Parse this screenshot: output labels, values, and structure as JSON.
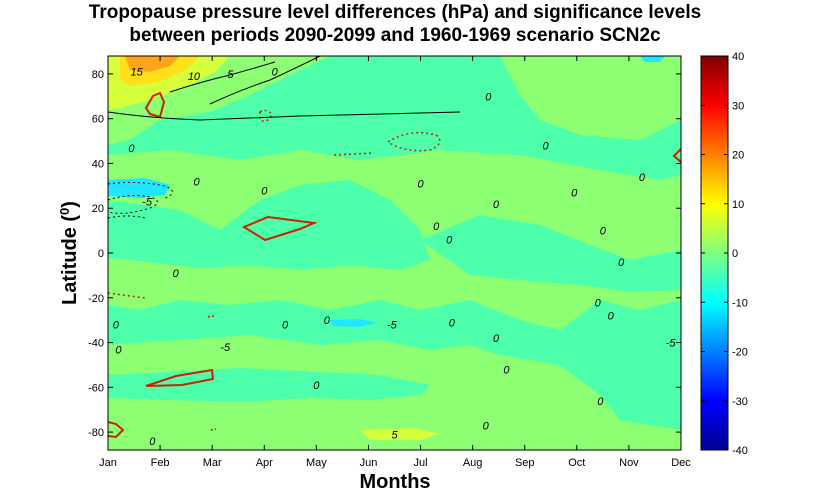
{
  "chart_data": {
    "type": "contour",
    "title": "Tropopause pressure level differences (hPa) and significance levels",
    "subtitle": "between periods 2090-2099 and 1960-1969 scenario SCN2c",
    "xlabel": "Months",
    "ylabel_text": "Latitude (",
    "ylabel_sup": "0",
    "ylabel_close": ")",
    "x_ticks": [
      "Jan",
      "Feb",
      "Mar",
      "Apr",
      "May",
      "Jun",
      "Jul",
      "Aug",
      "Sep",
      "Oct",
      "Nov",
      "Dec"
    ],
    "y_ticks": [
      80,
      60,
      40,
      20,
      0,
      -20,
      -40,
      -60,
      -80
    ],
    "ylim": [
      -88,
      88
    ],
    "colorbar": {
      "ticks": [
        40,
        30,
        20,
        10,
        0,
        -10,
        -20,
        -30,
        -40
      ],
      "range": [
        -40,
        40
      ],
      "stops": [
        "#00008f",
        "#0000ff",
        "#00ffff",
        "#80ff80",
        "#ffff00",
        "#ff0000",
        "#800000"
      ]
    },
    "contour_labels": [
      {
        "month": 1.55,
        "lat": 81,
        "text": "15"
      },
      {
        "month": 2.65,
        "lat": 79,
        "text": "10"
      },
      {
        "month": 3.35,
        "lat": 80,
        "text": "5"
      },
      {
        "month": 4.2,
        "lat": 81,
        "text": "0"
      },
      {
        "month": 1.45,
        "lat": 47,
        "text": "0"
      },
      {
        "month": 2.7,
        "lat": 32,
        "text": "0"
      },
      {
        "month": 1.75,
        "lat": 23,
        "text": "-5"
      },
      {
        "month": 4.0,
        "lat": 28,
        "text": "0"
      },
      {
        "month": 2.3,
        "lat": -9,
        "text": "0"
      },
      {
        "month": 1.15,
        "lat": -32,
        "text": "0"
      },
      {
        "month": 1.2,
        "lat": -43,
        "text": "0"
      },
      {
        "month": 3.25,
        "lat": -42,
        "text": "-5"
      },
      {
        "month": 4.4,
        "lat": -32,
        "text": "0"
      },
      {
        "month": 5.0,
        "lat": -59,
        "text": "0"
      },
      {
        "month": 5.2,
        "lat": -30,
        "text": "0"
      },
      {
        "month": 6.45,
        "lat": -32,
        "text": "-5"
      },
      {
        "month": 6.5,
        "lat": -81,
        "text": "5"
      },
      {
        "month": 1.85,
        "lat": -84,
        "text": "0"
      },
      {
        "month": 7.0,
        "lat": 31,
        "text": "0"
      },
      {
        "month": 7.3,
        "lat": 12,
        "text": "0"
      },
      {
        "month": 7.55,
        "lat": 6,
        "text": "0"
      },
      {
        "month": 7.6,
        "lat": -31,
        "text": "0"
      },
      {
        "month": 8.3,
        "lat": 70,
        "text": "0"
      },
      {
        "month": 8.45,
        "lat": 22,
        "text": "0"
      },
      {
        "month": 8.45,
        "lat": -38,
        "text": "0"
      },
      {
        "month": 8.65,
        "lat": -52,
        "text": "0"
      },
      {
        "month": 8.25,
        "lat": -77,
        "text": "0"
      },
      {
        "month": 9.4,
        "lat": 48,
        "text": "0"
      },
      {
        "month": 9.95,
        "lat": 27,
        "text": "0"
      },
      {
        "month": 10.5,
        "lat": 10,
        "text": "0"
      },
      {
        "month": 10.85,
        "lat": -4,
        "text": "0"
      },
      {
        "month": 11.25,
        "lat": 34,
        "text": "0"
      },
      {
        "month": 10.4,
        "lat": -22,
        "text": "0"
      },
      {
        "month": 10.65,
        "lat": -28,
        "text": "0"
      },
      {
        "month": 10.45,
        "lat": -66,
        "text": "0"
      },
      {
        "month": 11.8,
        "lat": -40,
        "text": "-5"
      }
    ]
  }
}
